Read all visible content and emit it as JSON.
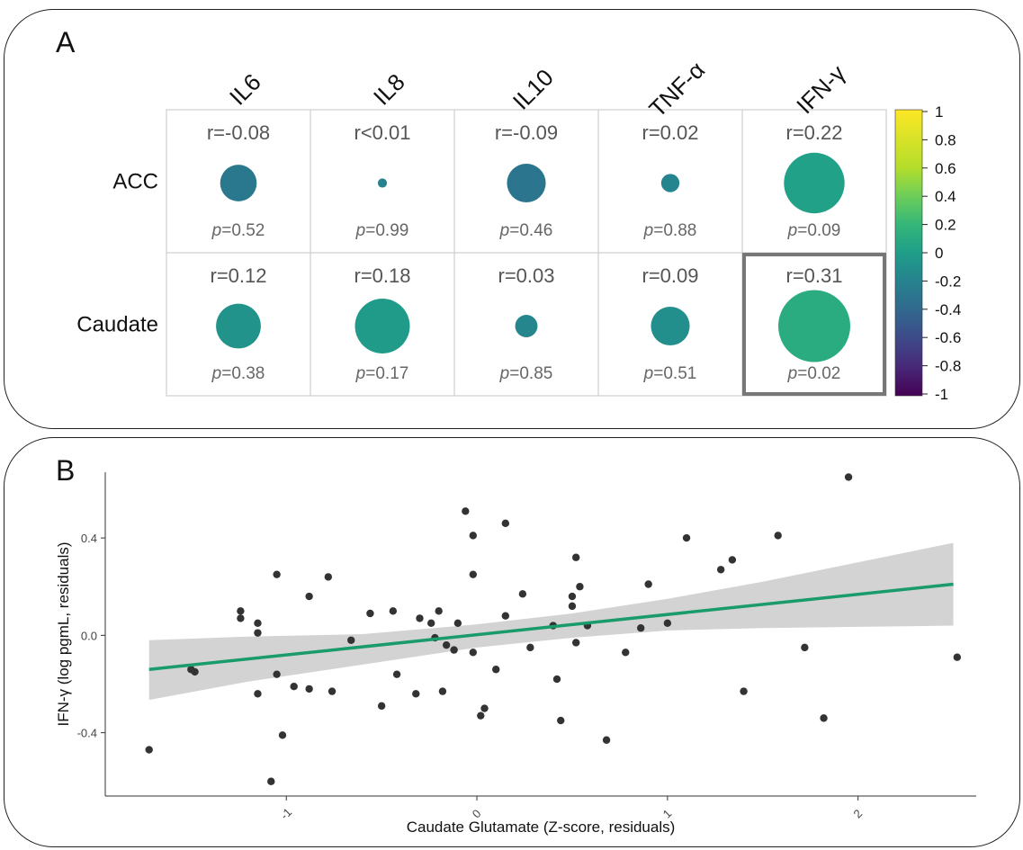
{
  "panel_a": {
    "label": "A"
  },
  "panel_b": {
    "label": "B"
  },
  "chart_data": [
    {
      "type": "heatmap",
      "columns": [
        "IL6",
        "IL8",
        "IL10",
        "TNF-α",
        "IFN-γ"
      ],
      "rows": [
        "ACC",
        "Caudate"
      ],
      "cells": [
        [
          {
            "r": -0.08,
            "r_label": "r=-0.08",
            "p_label": "=0.52"
          },
          {
            "r": 0.005,
            "r_label": "r<0.01",
            "p_label": "=0.99"
          },
          {
            "r": -0.09,
            "r_label": "r=-0.09",
            "p_label": "=0.46"
          },
          {
            "r": 0.02,
            "r_label": "r=0.02",
            "p_label": "=0.88"
          },
          {
            "r": 0.22,
            "r_label": "r=0.22",
            "p_label": "=0.09"
          }
        ],
        [
          {
            "r": 0.12,
            "r_label": "r=0.12",
            "p_label": "=0.38"
          },
          {
            "r": 0.18,
            "r_label": "r=0.18",
            "p_label": "=0.17"
          },
          {
            "r": 0.03,
            "r_label": "r=0.03",
            "p_label": "=0.85"
          },
          {
            "r": 0.09,
            "r_label": "r=0.09",
            "p_label": "=0.51"
          },
          {
            "r": 0.31,
            "r_label": "r=0.31",
            "p_label": "=0.02",
            "highlighted": true
          }
        ]
      ],
      "p_symbol": "p",
      "colorbar": {
        "range": [
          -1,
          1
        ],
        "ticks": [
          "1",
          "0.8",
          "0.6",
          "0.4",
          "0.2",
          "0",
          "-0.2",
          "-0.4",
          "-0.6",
          "-0.8",
          "-1"
        ],
        "palette": "viridis"
      }
    },
    {
      "type": "scatter",
      "xlabel": "Caudate Glutamate (Z-score, residuals)",
      "ylabel": "IFN-γ (log pgmL, residuals)",
      "xlim": [
        -1.95,
        2.62
      ],
      "ylim": [
        -0.66,
        0.67
      ],
      "x_ticks": [
        {
          "value": -1,
          "label": "-1"
        },
        {
          "value": 0,
          "label": "0"
        },
        {
          "value": 1,
          "label": "1"
        },
        {
          "value": 2,
          "label": "2"
        }
      ],
      "y_ticks": [
        {
          "value": 0.4,
          "label": "0.4"
        },
        {
          "value": 0.0,
          "label": "0.0"
        },
        {
          "value": -0.4,
          "label": "-0.4"
        }
      ],
      "fit_line": {
        "x": [
          -1.72,
          2.5
        ],
        "y": [
          -0.14,
          0.21
        ],
        "color": "#1a9b6c"
      },
      "confidence_band": {
        "x": [
          -1.72,
          -1.2,
          -0.6,
          0.0,
          0.5,
          1.0,
          1.5,
          2.0,
          2.5
        ],
        "lower": [
          -0.265,
          -0.19,
          -0.12,
          -0.05,
          -0.01,
          0.02,
          0.03,
          0.035,
          0.04
        ],
        "upper": [
          -0.02,
          -0.005,
          0.005,
          0.045,
          0.09,
          0.15,
          0.22,
          0.3,
          0.38
        ]
      },
      "points": [
        {
          "x": -1.72,
          "y": -0.47
        },
        {
          "x": -1.5,
          "y": -0.14
        },
        {
          "x": -1.48,
          "y": -0.15
        },
        {
          "x": -1.24,
          "y": 0.1
        },
        {
          "x": -1.24,
          "y": 0.07
        },
        {
          "x": -1.15,
          "y": 0.05
        },
        {
          "x": -1.15,
          "y": 0.01
        },
        {
          "x": -1.15,
          "y": -0.24
        },
        {
          "x": -1.08,
          "y": -0.6
        },
        {
          "x": -1.05,
          "y": 0.25
        },
        {
          "x": -1.05,
          "y": -0.16
        },
        {
          "x": -1.02,
          "y": -0.41
        },
        {
          "x": -0.96,
          "y": -0.21
        },
        {
          "x": -0.88,
          "y": 0.16
        },
        {
          "x": -0.88,
          "y": -0.22
        },
        {
          "x": -0.78,
          "y": 0.24
        },
        {
          "x": -0.76,
          "y": -0.23
        },
        {
          "x": -0.66,
          "y": -0.02
        },
        {
          "x": -0.56,
          "y": 0.09
        },
        {
          "x": -0.5,
          "y": -0.29
        },
        {
          "x": -0.44,
          "y": 0.1
        },
        {
          "x": -0.42,
          "y": -0.16
        },
        {
          "x": -0.32,
          "y": -0.24
        },
        {
          "x": -0.3,
          "y": 0.07
        },
        {
          "x": -0.24,
          "y": 0.05
        },
        {
          "x": -0.22,
          "y": -0.01
        },
        {
          "x": -0.2,
          "y": 0.1
        },
        {
          "x": -0.18,
          "y": -0.23
        },
        {
          "x": -0.16,
          "y": -0.04
        },
        {
          "x": -0.12,
          "y": -0.06
        },
        {
          "x": -0.1,
          "y": 0.05
        },
        {
          "x": -0.06,
          "y": 0.51
        },
        {
          "x": -0.02,
          "y": 0.41
        },
        {
          "x": -0.02,
          "y": 0.25
        },
        {
          "x": -0.02,
          "y": -0.07
        },
        {
          "x": 0.02,
          "y": -0.33
        },
        {
          "x": 0.04,
          "y": -0.3
        },
        {
          "x": 0.1,
          "y": -0.14
        },
        {
          "x": 0.15,
          "y": 0.46
        },
        {
          "x": 0.15,
          "y": 0.08
        },
        {
          "x": 0.24,
          "y": 0.17
        },
        {
          "x": 0.28,
          "y": -0.05
        },
        {
          "x": 0.4,
          "y": 0.04
        },
        {
          "x": 0.42,
          "y": -0.18
        },
        {
          "x": 0.44,
          "y": -0.35
        },
        {
          "x": 0.5,
          "y": 0.16
        },
        {
          "x": 0.5,
          "y": 0.12
        },
        {
          "x": 0.52,
          "y": 0.32
        },
        {
          "x": 0.52,
          "y": -0.03
        },
        {
          "x": 0.54,
          "y": 0.2
        },
        {
          "x": 0.58,
          "y": 0.04
        },
        {
          "x": 0.68,
          "y": -0.43
        },
        {
          "x": 0.78,
          "y": -0.07
        },
        {
          "x": 0.86,
          "y": 0.03
        },
        {
          "x": 0.9,
          "y": 0.21
        },
        {
          "x": 1.0,
          "y": 0.05
        },
        {
          "x": 1.1,
          "y": 0.4
        },
        {
          "x": 1.28,
          "y": 0.27
        },
        {
          "x": 1.34,
          "y": 0.31
        },
        {
          "x": 1.4,
          "y": -0.23
        },
        {
          "x": 1.58,
          "y": 0.41
        },
        {
          "x": 1.72,
          "y": -0.05
        },
        {
          "x": 1.82,
          "y": -0.34
        },
        {
          "x": 1.95,
          "y": 0.65
        },
        {
          "x": 2.52,
          "y": -0.09
        }
      ]
    }
  ]
}
